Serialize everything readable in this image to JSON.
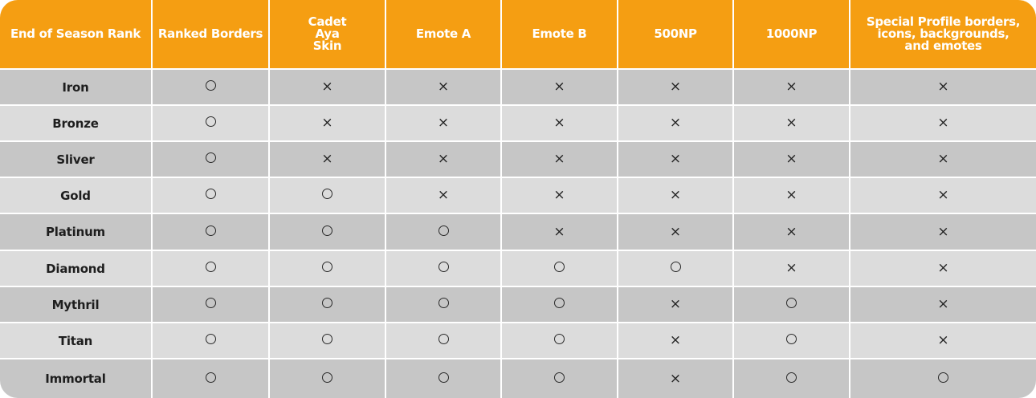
{
  "columns": [
    "End of Season Rank",
    "Ranked Borders",
    "Cadet Aya Skin",
    "Emote A",
    "Emote B",
    "500NP",
    "1000NP",
    "Special Profile borders, icons, backgrounds, and emotes"
  ],
  "rows": [
    {
      "rank": "Iron",
      "marks": [
        "○",
        "×",
        "×",
        "×",
        "×",
        "×",
        "×"
      ]
    },
    {
      "rank": "Bronze",
      "marks": [
        "○",
        "×",
        "×",
        "×",
        "×",
        "×",
        "×"
      ]
    },
    {
      "rank": "Sliver",
      "marks": [
        "○",
        "×",
        "×",
        "×",
        "×",
        "×",
        "×"
      ]
    },
    {
      "rank": "Gold",
      "marks": [
        "○",
        "○",
        "×",
        "×",
        "×",
        "×",
        "×"
      ]
    },
    {
      "rank": "Platinum",
      "marks": [
        "○",
        "○",
        "○",
        "×",
        "×",
        "×",
        "×"
      ]
    },
    {
      "rank": "Diamond",
      "marks": [
        "○",
        "○",
        "○",
        "○",
        "○",
        "×",
        "×"
      ]
    },
    {
      "rank": "Mythril",
      "marks": [
        "○",
        "○",
        "○",
        "○",
        "×",
        "○",
        "×"
      ]
    },
    {
      "rank": "Titan",
      "marks": [
        "○",
        "○",
        "○",
        "○",
        "×",
        "○",
        "×"
      ]
    },
    {
      "rank": "Immortal",
      "marks": [
        "○",
        "○",
        "○",
        "○",
        "×",
        "○",
        "○"
      ]
    }
  ],
  "colors": {
    "header_bg": "#f59e12",
    "row_dark": "#c6c6c6",
    "row_light": "#dcdcdc",
    "divider": "#ffffff"
  }
}
